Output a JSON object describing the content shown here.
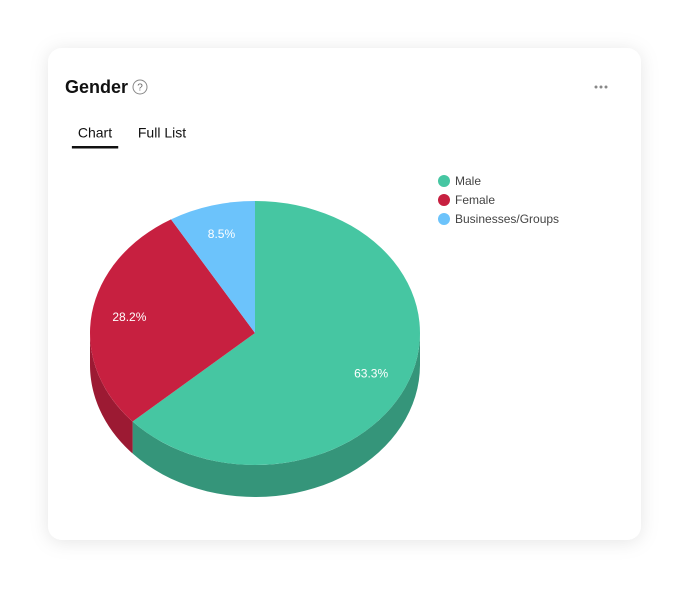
{
  "card": {
    "title": "Gender",
    "help": "?",
    "tabs": [
      "Chart",
      "Full List"
    ],
    "active_tab": 0
  },
  "chart_data": {
    "type": "pie",
    "series": [
      {
        "name": "Male",
        "color": "#46c6a2",
        "side_color": "#35957a",
        "value": 63.3,
        "value_label": "63.3%"
      },
      {
        "name": "Female",
        "color": "#c72040",
        "side_color": "#9c1a33",
        "value": 28.2,
        "value_label": "28.2%"
      },
      {
        "name": "Businesses/Groups",
        "color": "#6cc3fb",
        "side_color": "#4f9ccc",
        "value": 8.5,
        "value_label": "8.5%"
      }
    ]
  }
}
